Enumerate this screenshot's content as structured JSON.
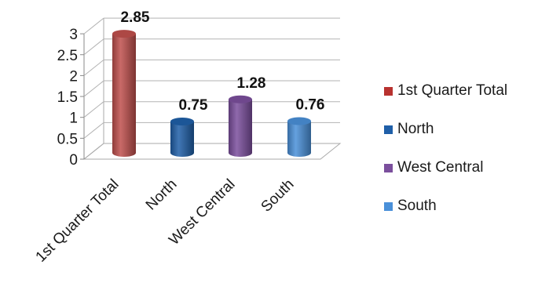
{
  "chart_data": {
    "type": "bar",
    "style": "3d-cylinder",
    "categories": [
      "1st Quarter Total",
      "North",
      "West Central",
      "South"
    ],
    "values": [
      2.85,
      0.75,
      1.28,
      0.76
    ],
    "data_labels": [
      "2.85",
      "0.75",
      "1.28",
      "0.76"
    ],
    "y_ticks": [
      "0",
      "0.5",
      "1",
      "1.5",
      "2",
      "2.5",
      "3"
    ],
    "ylim": [
      0,
      3
    ],
    "grid": true,
    "legend_position": "right",
    "colors": [
      "#c0504d",
      "#1f5fa8",
      "#7b4f9d",
      "#4a90d9"
    ],
    "legend": [
      {
        "label": "1st Quarter Total",
        "color": "#b8322f"
      },
      {
        "label": "North",
        "color": "#1f5fa8"
      },
      {
        "label": "West Central",
        "color": "#7b4f9d"
      },
      {
        "label": "South",
        "color": "#4a90d9"
      }
    ]
  }
}
